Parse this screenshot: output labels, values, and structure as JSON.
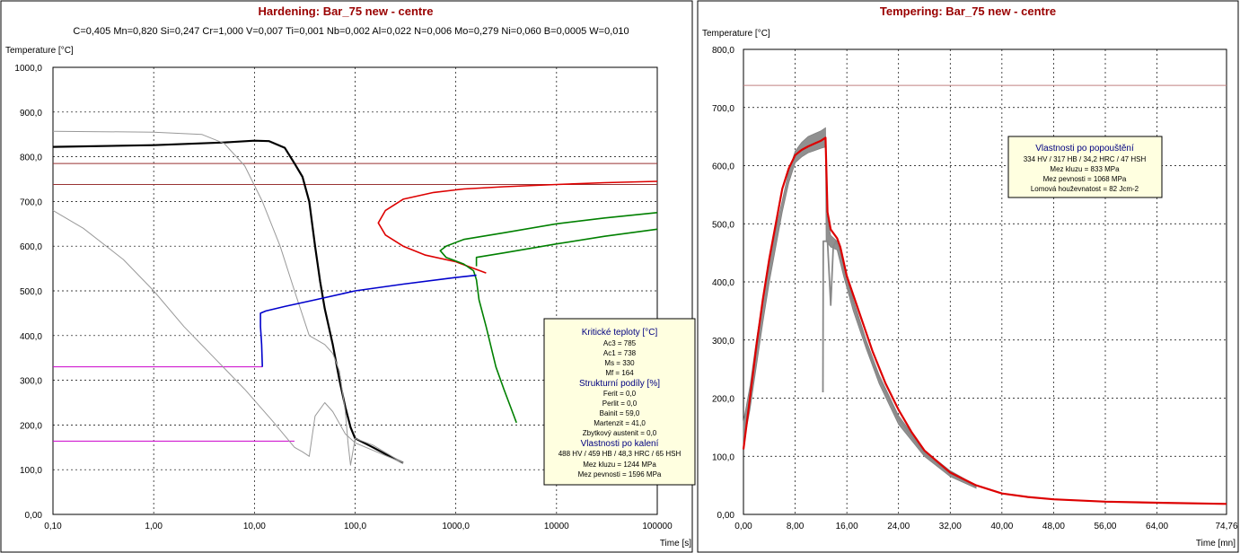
{
  "chart_data": [
    {
      "type": "line",
      "title": "Hardening: Bar_75 new - centre",
      "composition": "C=0,405  Mn=0,820  Si=0,247  Cr=1,000  V=0,007  Ti=0,001  Nb=0,002  Al=0,022  N=0,006  Mo=0,279  Ni=0,060  B=0,0005  W=0,010",
      "ylabel": "Temperature [°C]",
      "xlabel": "Time  [s]",
      "xscale": "log",
      "xlim": [
        0.1,
        100000
      ],
      "ylim": [
        0,
        1000
      ],
      "grid": true,
      "x_ticks": [
        "0,10",
        "1,00",
        "10,00",
        "100,0",
        "1000,0",
        "10000",
        "100000"
      ],
      "y_ticks": [
        "0,00",
        "100,0",
        "200,0",
        "300,0",
        "400,0",
        "500,0",
        "600,0",
        "700,0",
        "800,0",
        "900,0",
        "1000,0"
      ],
      "hlines": [
        {
          "y": 785,
          "color": "#993333"
        },
        {
          "y": 738,
          "color": "#993333"
        },
        {
          "y": 330,
          "color": "#cc00cc",
          "x_end": 12
        },
        {
          "y": 164,
          "color": "#cc00cc",
          "x_end": 25
        }
      ],
      "series": [
        {
          "color": "#000000",
          "width": 2.2,
          "points": [
            [
              0.1,
              822
            ],
            [
              1,
              826
            ],
            [
              5,
              832
            ],
            [
              10,
              836
            ],
            [
              14,
              835
            ],
            [
              20,
              820
            ],
            [
              25,
              785
            ],
            [
              30,
              755
            ],
            [
              35,
              700
            ],
            [
              40,
              600
            ],
            [
              45,
              520
            ],
            [
              50,
              460
            ],
            [
              60,
              380
            ],
            [
              70,
              300
            ],
            [
              80,
              240
            ],
            [
              90,
              195
            ],
            [
              100,
              170
            ],
            [
              150,
              150
            ],
            [
              200,
              135
            ],
            [
              300,
              115
            ]
          ]
        },
        {
          "color": "#999999",
          "width": 1,
          "points": [
            [
              0.1,
              857
            ],
            [
              1,
              855
            ],
            [
              3,
              850
            ],
            [
              5,
              830
            ],
            [
              8,
              780
            ],
            [
              12,
              700
            ],
            [
              18,
              600
            ],
            [
              25,
              500
            ],
            [
              35,
              400
            ],
            [
              50,
              380
            ],
            [
              60,
              360
            ],
            [
              70,
              320
            ],
            [
              80,
              230
            ],
            [
              85,
              160
            ],
            [
              90,
              110
            ],
            [
              100,
              170
            ],
            [
              150,
              155
            ],
            [
              300,
              115
            ]
          ]
        },
        {
          "color": "#999999",
          "width": 1,
          "points": [
            [
              0.1,
              680
            ],
            [
              0.2,
              640
            ],
            [
              0.5,
              570
            ],
            [
              1,
              500
            ],
            [
              2,
              420
            ],
            [
              4,
              350
            ],
            [
              8,
              280
            ],
            [
              15,
              210
            ],
            [
              25,
              150
            ],
            [
              30,
              140
            ],
            [
              35,
              130
            ],
            [
              40,
              220
            ],
            [
              50,
              250
            ],
            [
              60,
              230
            ],
            [
              80,
              180
            ],
            [
              100,
              160
            ],
            [
              300,
              115
            ]
          ]
        },
        {
          "color": "#dd0000",
          "width": 1.6,
          "points": [
            [
              2000,
              540
            ],
            [
              1000,
              565
            ],
            [
              500,
              580
            ],
            [
              300,
              600
            ],
            [
              200,
              625
            ],
            [
              170,
              652
            ],
            [
              200,
              680
            ],
            [
              300,
              705
            ],
            [
              600,
              720
            ],
            [
              1200,
              728
            ],
            [
              3000,
              733
            ],
            [
              10000,
              738
            ],
            [
              30000,
              742
            ],
            [
              100000,
              745
            ]
          ]
        },
        {
          "color": "#008000",
          "width": 1.6,
          "points": [
            [
              100000,
              675
            ],
            [
              30000,
              663
            ],
            [
              10000,
              650
            ],
            [
              3000,
              630
            ],
            [
              1200,
              615
            ],
            [
              800,
              600
            ],
            [
              700,
              590
            ],
            [
              800,
              575
            ],
            [
              1200,
              560
            ],
            [
              1500,
              545
            ],
            [
              1600,
              525
            ],
            [
              1700,
              480
            ],
            [
              2000,
              420
            ],
            [
              2500,
              330
            ],
            [
              3000,
              280
            ],
            [
              3500,
              240
            ],
            [
              4000,
              205
            ]
          ]
        },
        {
          "color": "#008000",
          "width": 1.6,
          "points": [
            [
              100000,
              638
            ],
            [
              30000,
              622
            ],
            [
              10000,
              605
            ],
            [
              3000,
              585
            ],
            [
              1600,
              575
            ],
            [
              1600,
              555
            ]
          ]
        },
        {
          "color": "#0000cc",
          "width": 1.6,
          "points": [
            [
              1600,
              535
            ],
            [
              1000,
              530
            ],
            [
              300,
              515
            ],
            [
              100,
              500
            ],
            [
              40,
              480
            ],
            [
              20,
              465
            ],
            [
              13,
              455
            ],
            [
              11.5,
              450
            ],
            [
              11.5,
              420
            ],
            [
              11.8,
              380
            ],
            [
              12,
              330
            ]
          ]
        }
      ],
      "info_box": {
        "critical_title": "Kritické teploty [°C]",
        "ac3": "Ac3 = 785",
        "ac1": "Ac1 = 738",
        "ms": "Ms = 330",
        "mf": "Mf = 164",
        "struct_title": "Strukturní podíly [%]",
        "ferrite": "Ferit = 0,0",
        "pearlite": "Perlit = 0,0",
        "bainite": "Bainit = 59,0",
        "martensite": "Martenzit = 41,0",
        "retained_austenite": "Zbytkový austenit = 0,0",
        "hardening_title": "Vlastnosti po kalení",
        "hardness": "488 HV / 459 HB / 48,3 HRC / 65 HSH",
        "yield": "Mez kluzu =  1244 MPa",
        "tensile": "Mez pevnosti =  1596 MPa"
      }
    },
    {
      "type": "line",
      "title": "Tempering: Bar_75 new - centre",
      "ylabel": "Temperature [°C]",
      "xlabel": "Time  [mn]",
      "xlim": [
        0,
        74.76
      ],
      "ylim": [
        0,
        800
      ],
      "grid": true,
      "x_ticks": [
        "0,00",
        "8,00",
        "16,00",
        "24,00",
        "32,00",
        "40,00",
        "48,00",
        "56,00",
        "64,00",
        "74,76"
      ],
      "y_ticks": [
        "0,00",
        "100,0",
        "200,0",
        "300,0",
        "400,0",
        "500,0",
        "600,0",
        "700,0",
        "800,0"
      ],
      "hlines": [
        {
          "y": 738,
          "color": "#c08080"
        }
      ],
      "gray_band": {
        "upper": [
          [
            0,
            160
          ],
          [
            1,
            220
          ],
          [
            2,
            300
          ],
          [
            3,
            370
          ],
          [
            4,
            430
          ],
          [
            5,
            490
          ],
          [
            6,
            540
          ],
          [
            7,
            590
          ],
          [
            8,
            625
          ],
          [
            9,
            640
          ],
          [
            10,
            650
          ],
          [
            11,
            655
          ],
          [
            12,
            660
          ],
          [
            12.7,
            665
          ],
          [
            12.8,
            520
          ],
          [
            13.5,
            480
          ],
          [
            14.5,
            470
          ],
          [
            15.5,
            430
          ],
          [
            17,
            370
          ],
          [
            19,
            300
          ],
          [
            21,
            240
          ],
          [
            24,
            170
          ],
          [
            28,
            110
          ],
          [
            32,
            75
          ],
          [
            36,
            50
          ]
        ],
        "lower": [
          [
            0,
            120
          ],
          [
            1,
            180
          ],
          [
            2,
            255
          ],
          [
            3,
            330
          ],
          [
            4,
            400
          ],
          [
            5,
            460
          ],
          [
            6,
            520
          ],
          [
            7,
            570
          ],
          [
            8,
            605
          ],
          [
            9,
            615
          ],
          [
            10,
            622
          ],
          [
            11,
            626
          ],
          [
            12,
            630
          ],
          [
            12.7,
            632
          ],
          [
            12.8,
            470
          ],
          [
            13.5,
            460
          ],
          [
            14.5,
            455
          ],
          [
            15.5,
            410
          ],
          [
            17,
            350
          ],
          [
            19,
            285
          ],
          [
            21,
            225
          ],
          [
            24,
            155
          ],
          [
            28,
            100
          ],
          [
            32,
            65
          ],
          [
            36,
            45
          ]
        ]
      },
      "series": [
        {
          "color": "#888888",
          "width": 1.8,
          "points": [
            [
              12.3,
              210
            ],
            [
              12.35,
              470
            ],
            [
              13,
              470
            ],
            [
              13.5,
              360
            ],
            [
              13.9,
              460
            ],
            [
              14.3,
              470
            ],
            [
              15,
              455
            ],
            [
              16,
              400
            ],
            [
              18,
              330
            ],
            [
              20,
              260
            ],
            [
              24,
              165
            ],
            [
              28,
              105
            ],
            [
              32,
              70
            ],
            [
              36,
              48
            ]
          ]
        },
        {
          "color": "#dd0000",
          "width": 2.2,
          "points": [
            [
              0,
              112
            ],
            [
              1,
              200
            ],
            [
              2,
              290
            ],
            [
              3,
              370
            ],
            [
              4,
              440
            ],
            [
              5,
              500
            ],
            [
              6,
              560
            ],
            [
              7,
              595
            ],
            [
              8,
              618
            ],
            [
              9,
              627
            ],
            [
              10,
              633
            ],
            [
              11,
              638
            ],
            [
              12,
              643
            ],
            [
              12.7,
              648
            ],
            [
              13,
              520
            ],
            [
              13.5,
              490
            ],
            [
              14.5,
              475
            ],
            [
              15,
              460
            ],
            [
              16,
              410
            ],
            [
              18,
              345
            ],
            [
              20,
              280
            ],
            [
              22,
              225
            ],
            [
              24,
              180
            ],
            [
              26,
              142
            ],
            [
              28,
              110
            ],
            [
              32,
              72
            ],
            [
              36,
              50
            ],
            [
              40,
              36
            ],
            [
              44,
              30
            ],
            [
              48,
              26
            ],
            [
              56,
              22
            ],
            [
              64,
              20
            ],
            [
              74.76,
              18
            ]
          ]
        }
      ],
      "info_box": {
        "title": "Vlastnosti po popouštění",
        "hardness": "334 HV / 317 HB / 34,2 HRC / 47 HSH",
        "yield": "Mez kluzu =   833 MPa",
        "tensile": "Mez pevnosti =   1068 MPa",
        "toughness": "Lomová houževnatost =    82 Jcm-2"
      }
    }
  ]
}
